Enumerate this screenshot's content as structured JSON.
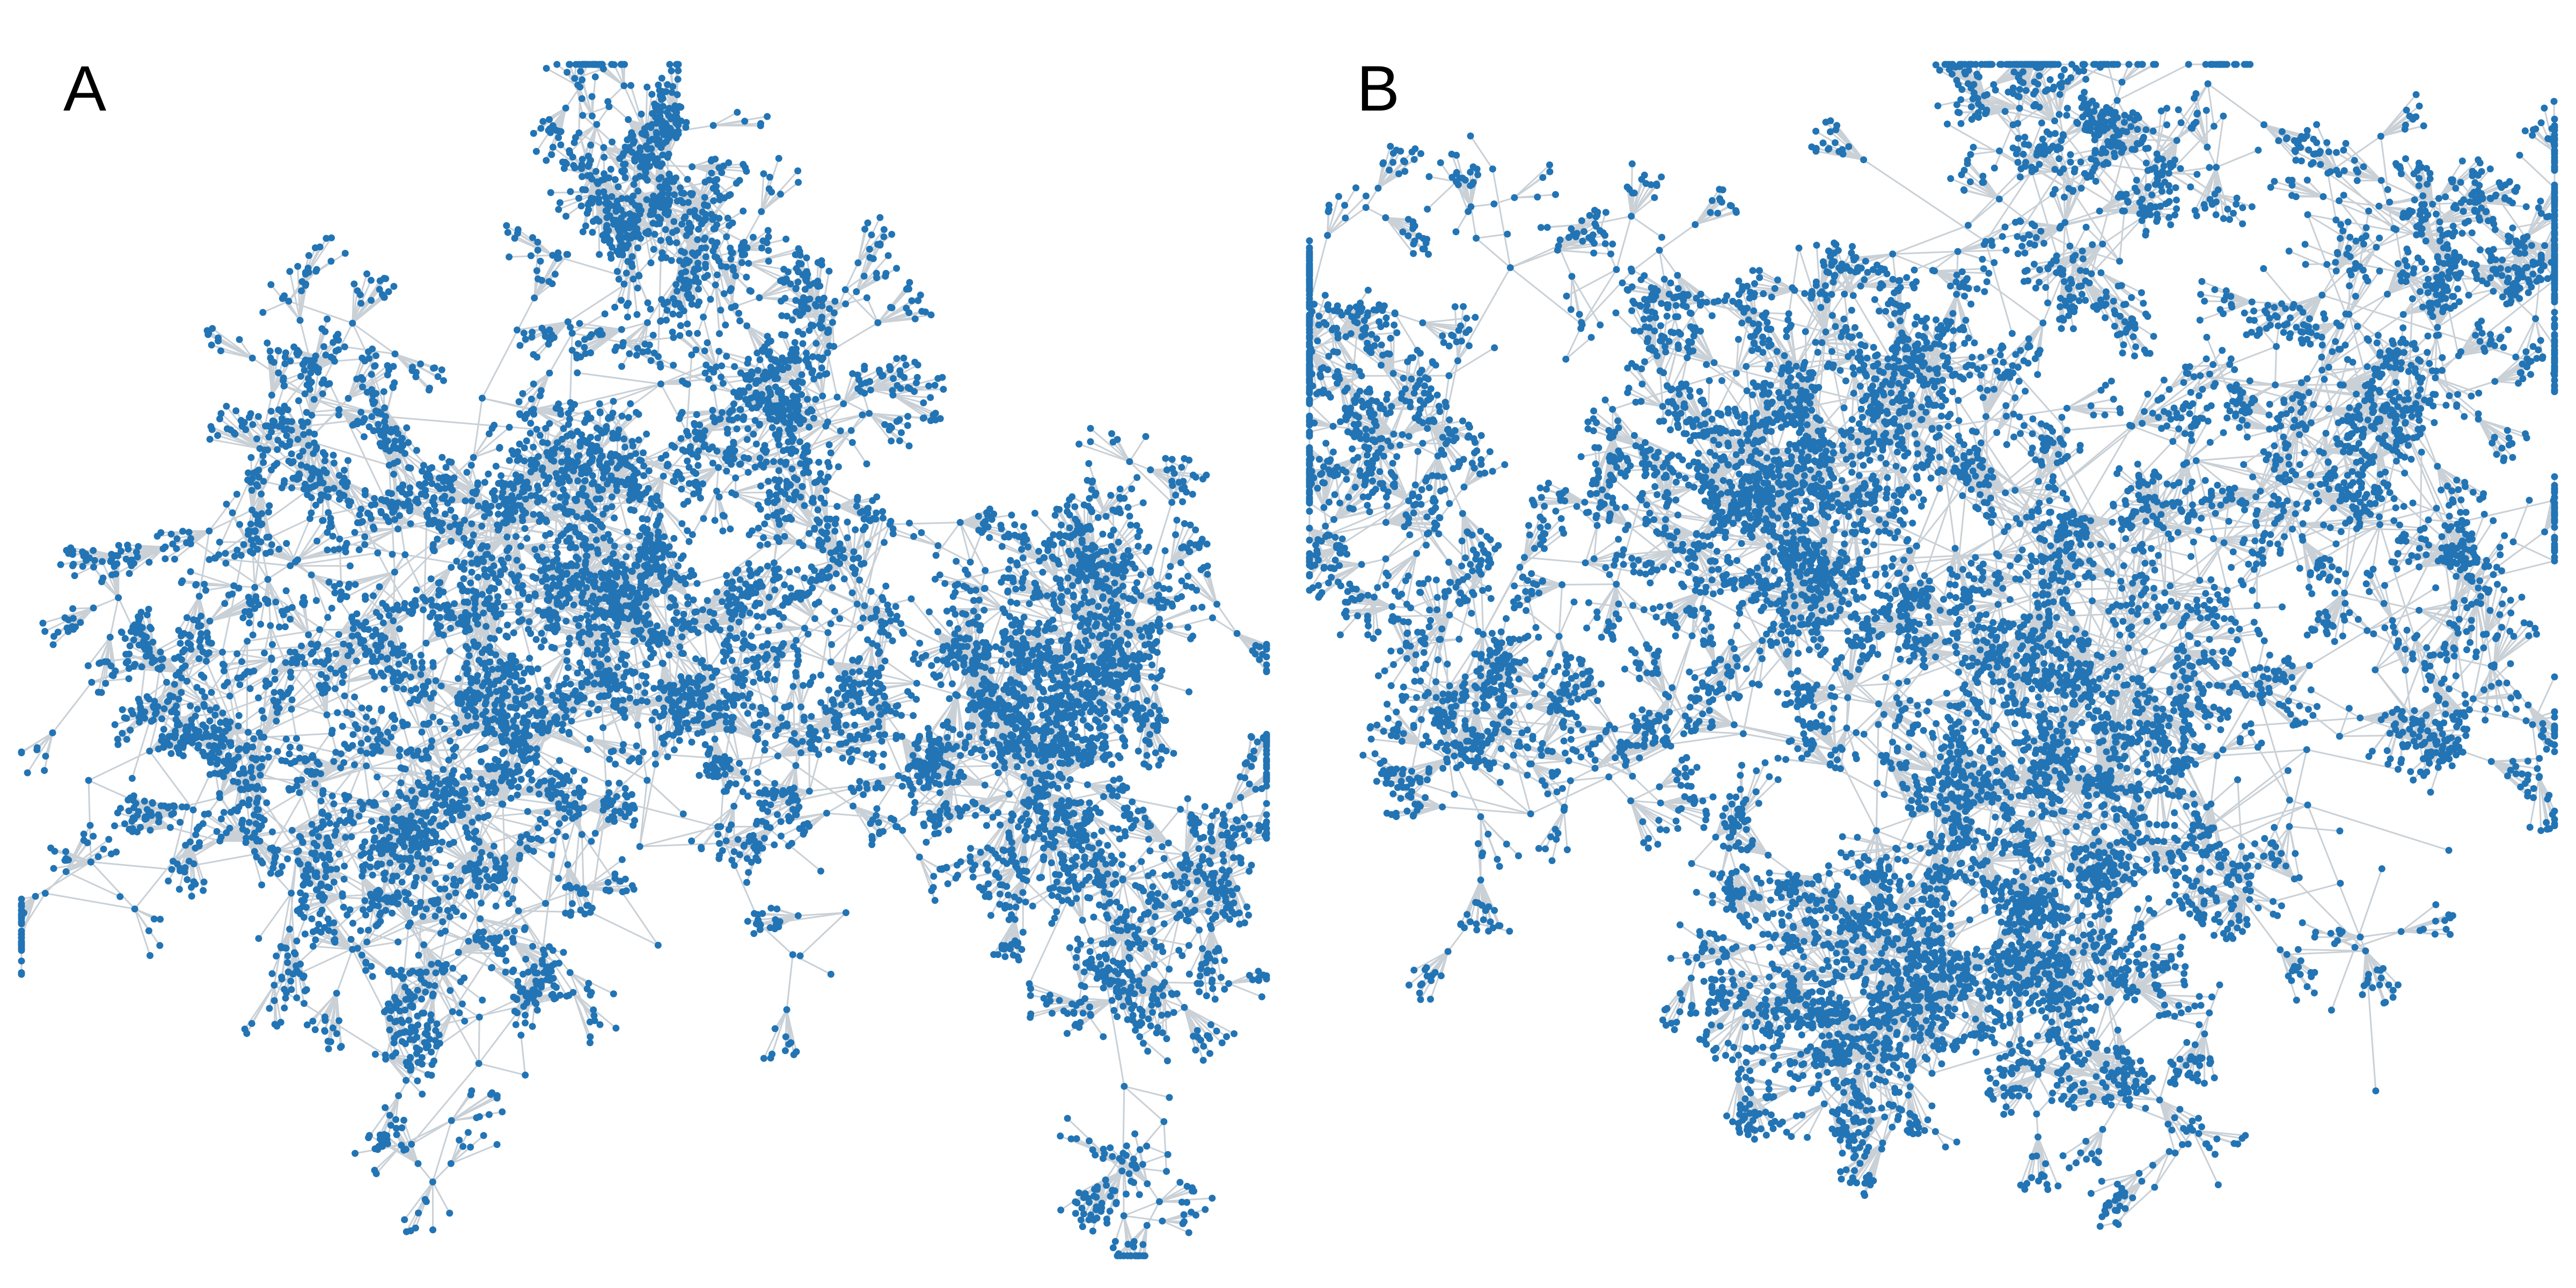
{
  "panels": [
    {
      "label": "A"
    },
    {
      "label": "B"
    }
  ],
  "style": {
    "node_color": "#2274b4",
    "edge_color": "#c9d0d6",
    "background": "#ffffff"
  }
}
